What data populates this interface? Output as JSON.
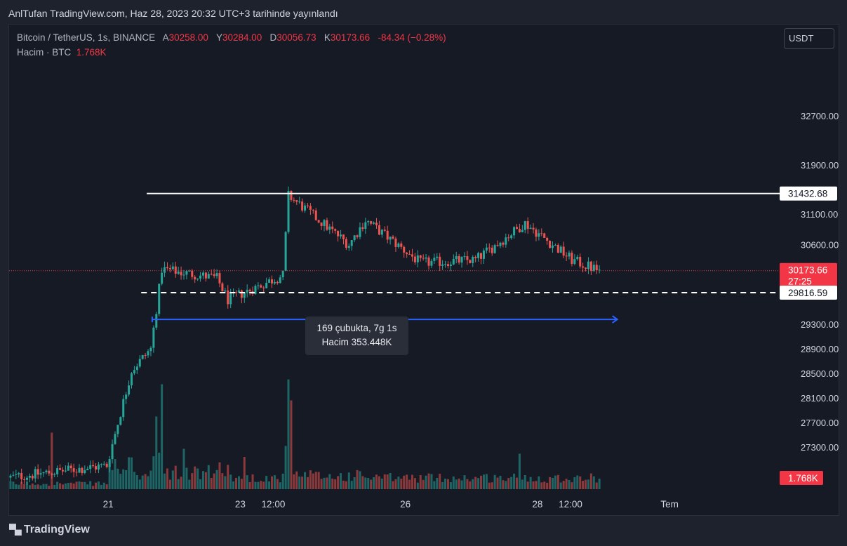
{
  "header": {
    "published_text": "AnlTufan TradingView.com, Haz 28, 2023 20:32 UTC+3 tarihinde yayınlandı"
  },
  "legend": {
    "symbol": "Bitcoin / TetherUS, 1s, BINANCE",
    "open_label": "A",
    "open_value": "30258.00",
    "high_label": "Y",
    "high_value": "30284.00",
    "low_label": "D",
    "low_value": "30056.73",
    "close_label": "K",
    "close_value": "30173.66",
    "change": "-84.34 (−0.28%)",
    "volume_label": "Hacim · BTC",
    "volume_value": "1.768K"
  },
  "currency_button": "USDT",
  "measure_tool": {
    "bars_text": "169 çubukta, 7g 1s",
    "volume_text": "Hacim 353.448K"
  },
  "footer": {
    "logo_text": "TradingView"
  },
  "colors": {
    "up": "#26a69a",
    "down": "#ef5350",
    "background": "#161a25",
    "measure": "#2962ff",
    "last_price": "#f23645"
  },
  "chart_data": {
    "type": "candlestick",
    "symbol": "Bitcoin / TetherUS",
    "interval": "1s",
    "exchange": "BINANCE",
    "y_ticks": [
      32700,
      31900,
      31100,
      30600,
      29300,
      28900,
      28500,
      28100,
      27700,
      27300
    ],
    "y_tick_labels": [
      "32700.00",
      "31900.00",
      "31100.00",
      "30600.00",
      "29300.00",
      "28900.00",
      "28500.00",
      "28100.00",
      "27700.00",
      "27300.00"
    ],
    "ylim": [
      26750,
      33500
    ],
    "x_ticks": [
      {
        "label": "21",
        "hour": 36
      },
      {
        "label": "23",
        "hour": 84
      },
      {
        "label": "12:00",
        "hour": 96
      },
      {
        "label": "26",
        "hour": 144
      },
      {
        "label": "28",
        "hour": 192
      },
      {
        "label": "12:00",
        "hour": 204
      },
      {
        "label": "Tem",
        "hour": 240
      }
    ],
    "xlim_hours": [
      0,
      280
    ],
    "last_hour": 215,
    "horizontal_lines": [
      {
        "price": 31432.68,
        "label": "31432.68",
        "style": "solid",
        "color": "#ffffff"
      },
      {
        "price": 29816.59,
        "label": "29816.59",
        "style": "dashed",
        "color": "#ffffff"
      }
    ],
    "last_price": {
      "price": 30173.66,
      "label": "30173.66",
      "countdown": "27:25"
    },
    "volume_badge": "1.768K",
    "measure": {
      "from_hour": 52,
      "to_hour": 221,
      "price": 29380
    },
    "segments": [
      {
        "from": 0,
        "to": 36,
        "open": 26800,
        "close": 27000,
        "vol": [
          0.02,
          0.05
        ]
      },
      {
        "from": 36,
        "to": 45,
        "open": 27000,
        "close": 28550,
        "vol": [
          0.08,
          0.2
        ]
      },
      {
        "from": 45,
        "to": 52,
        "open": 28550,
        "close": 28900,
        "vol": [
          0.05,
          0.12
        ]
      },
      {
        "from": 52,
        "to": 56,
        "open": 28900,
        "close": 30200,
        "vol": [
          0.15,
          0.35
        ]
      },
      {
        "from": 56,
        "to": 76,
        "open": 30200,
        "close": 30050,
        "vol": [
          0.05,
          0.15
        ]
      },
      {
        "from": 76,
        "to": 80,
        "open": 30050,
        "close": 29700,
        "vol": [
          0.08,
          0.2
        ]
      },
      {
        "from": 80,
        "to": 100,
        "open": 29700,
        "close": 30100,
        "vol": [
          0.04,
          0.1
        ]
      },
      {
        "from": 100,
        "to": 102,
        "open": 30100,
        "close": 31400,
        "vol": [
          0.2,
          0.5
        ]
      },
      {
        "from": 102,
        "to": 124,
        "open": 31400,
        "close": 30600,
        "vol": [
          0.04,
          0.12
        ]
      },
      {
        "from": 124,
        "to": 130,
        "open": 30600,
        "close": 31000,
        "vol": [
          0.05,
          0.12
        ]
      },
      {
        "from": 130,
        "to": 150,
        "open": 31000,
        "close": 30300,
        "vol": [
          0.04,
          0.1
        ]
      },
      {
        "from": 150,
        "to": 170,
        "open": 30300,
        "close": 30350,
        "vol": [
          0.04,
          0.1
        ]
      },
      {
        "from": 170,
        "to": 188,
        "open": 30350,
        "close": 30950,
        "vol": [
          0.04,
          0.1
        ]
      },
      {
        "from": 188,
        "to": 205,
        "open": 30950,
        "close": 30350,
        "vol": [
          0.04,
          0.1
        ]
      },
      {
        "from": 205,
        "to": 215,
        "open": 30350,
        "close": 30173.66,
        "vol": [
          0.04,
          0.1
        ]
      }
    ],
    "volume_spikes": [
      {
        "hour": 15,
        "vol": 0.35,
        "dir": "down"
      },
      {
        "hour": 53,
        "vol": 0.45,
        "dir": "up"
      },
      {
        "hour": 55,
        "vol": 0.65,
        "dir": "up"
      },
      {
        "hour": 63,
        "vol": 0.25,
        "dir": "up"
      },
      {
        "hour": 101,
        "vol": 0.68,
        "dir": "up"
      },
      {
        "hour": 102,
        "vol": 0.55,
        "dir": "down"
      },
      {
        "hour": 85,
        "vol": 0.2,
        "dir": "down"
      },
      {
        "hour": 185,
        "vol": 0.22,
        "dir": "up"
      }
    ]
  }
}
